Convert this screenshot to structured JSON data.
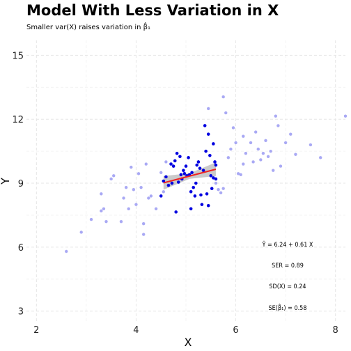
{
  "chart_data": {
    "type": "scatter",
    "title": "Model With Less Variation in X",
    "subtitle": "Smaller var(X) raises variation in β̂₁",
    "xlabel": "X",
    "ylabel": "Y",
    "xlim": [
      1.8,
      8.2
    ],
    "ylim": [
      2.5,
      15.7
    ],
    "x_ticks": [
      2,
      4,
      6,
      8
    ],
    "y_ticks": [
      3,
      6,
      9,
      12,
      15
    ],
    "grid": true,
    "colors": {
      "background_points": "#8c8cf0",
      "highlight_points": "#0000e0",
      "fit_line": "#ee2222",
      "confidence_band": "#b4b4b4"
    },
    "series": [
      {
        "role": "full-sample",
        "points": [
          [
            2.6,
            5.8
          ],
          [
            2.9,
            6.7
          ],
          [
            3.1,
            7.3
          ],
          [
            3.3,
            7.7
          ],
          [
            3.3,
            8.5
          ],
          [
            3.4,
            7.2
          ],
          [
            3.35,
            7.8
          ],
          [
            3.5,
            9.2
          ],
          [
            3.55,
            9.35
          ],
          [
            3.7,
            7.2
          ],
          [
            3.75,
            8.3
          ],
          [
            3.8,
            8.8
          ],
          [
            3.85,
            7.8
          ],
          [
            3.9,
            9.75
          ],
          [
            3.95,
            8.7
          ],
          [
            4.0,
            8.0
          ],
          [
            4.05,
            9.45
          ],
          [
            4.1,
            8.8
          ],
          [
            4.15,
            7.1
          ],
          [
            4.15,
            6.6
          ],
          [
            4.2,
            9.9
          ],
          [
            4.25,
            8.3
          ],
          [
            4.3,
            8.4
          ],
          [
            4.4,
            7.8
          ],
          [
            4.5,
            9.5
          ],
          [
            4.55,
            8.6
          ],
          [
            4.6,
            10.0
          ],
          [
            5.45,
            12.5
          ],
          [
            5.6,
            9.0
          ],
          [
            5.65,
            8.7
          ],
          [
            5.7,
            8.55
          ],
          [
            5.75,
            8.75
          ],
          [
            5.75,
            13.05
          ],
          [
            5.8,
            12.3
          ],
          [
            5.85,
            10.2
          ],
          [
            5.9,
            10.6
          ],
          [
            5.95,
            11.6
          ],
          [
            6.0,
            10.9
          ],
          [
            6.05,
            9.45
          ],
          [
            6.1,
            9.4
          ],
          [
            6.15,
            11.2
          ],
          [
            6.15,
            9.9
          ],
          [
            6.2,
            10.4
          ],
          [
            6.3,
            10.9
          ],
          [
            6.35,
            10.0
          ],
          [
            6.4,
            11.4
          ],
          [
            6.45,
            10.6
          ],
          [
            6.5,
            10.1
          ],
          [
            6.55,
            10.4
          ],
          [
            6.6,
            11.0
          ],
          [
            6.65,
            10.25
          ],
          [
            6.7,
            10.5
          ],
          [
            6.75,
            9.6
          ],
          [
            6.8,
            12.15
          ],
          [
            6.85,
            11.7
          ],
          [
            6.9,
            9.8
          ],
          [
            7.0,
            10.9
          ],
          [
            7.1,
            11.3
          ],
          [
            7.2,
            10.35
          ],
          [
            7.5,
            10.8
          ],
          [
            7.7,
            10.2
          ],
          [
            8.2,
            12.15
          ]
        ]
      },
      {
        "role": "less-variation-sample",
        "points": [
          [
            4.5,
            8.4
          ],
          [
            4.55,
            9.1
          ],
          [
            4.6,
            9.3
          ],
          [
            4.65,
            8.9
          ],
          [
            4.7,
            9.9
          ],
          [
            4.72,
            9.0
          ],
          [
            4.75,
            9.8
          ],
          [
            4.78,
            10.05
          ],
          [
            4.8,
            7.65
          ],
          [
            4.82,
            10.4
          ],
          [
            4.85,
            9.05
          ],
          [
            4.88,
            10.25
          ],
          [
            4.9,
            9.4
          ],
          [
            4.92,
            9.2
          ],
          [
            4.95,
            9.6
          ],
          [
            4.97,
            9.45
          ],
          [
            5.0,
            9.8
          ],
          [
            5.02,
            9.35
          ],
          [
            5.05,
            10.2
          ],
          [
            5.07,
            9.4
          ],
          [
            5.1,
            8.6
          ],
          [
            5.1,
            7.8
          ],
          [
            5.12,
            9.5
          ],
          [
            5.15,
            8.8
          ],
          [
            5.18,
            8.4
          ],
          [
            5.2,
            9.0
          ],
          [
            5.22,
            9.85
          ],
          [
            5.25,
            10.0
          ],
          [
            5.28,
            9.7
          ],
          [
            5.3,
            8.45
          ],
          [
            5.32,
            8.0
          ],
          [
            5.35,
            9.6
          ],
          [
            5.38,
            11.7
          ],
          [
            5.4,
            10.5
          ],
          [
            5.42,
            8.5
          ],
          [
            5.45,
            7.95
          ],
          [
            5.45,
            11.3
          ],
          [
            5.48,
            10.3
          ],
          [
            5.5,
            9.35
          ],
          [
            5.52,
            8.75
          ],
          [
            5.55,
            9.25
          ],
          [
            5.55,
            10.85
          ],
          [
            5.58,
            10.0
          ],
          [
            5.6,
            9.2
          ],
          [
            5.6,
            9.85
          ]
        ]
      }
    ],
    "fit": {
      "x_range": [
        4.55,
        5.6
      ],
      "intercept": 6.24,
      "slope": 0.61
    },
    "band_half_width": [
      0.32,
      0.13,
      0.32
    ],
    "annotations": [
      "Ŷ = 6.24 + 0.61 X",
      "SER = 0.89",
      "SD(X) = 0.24",
      "SE(β̂₁) = 0.58"
    ]
  }
}
